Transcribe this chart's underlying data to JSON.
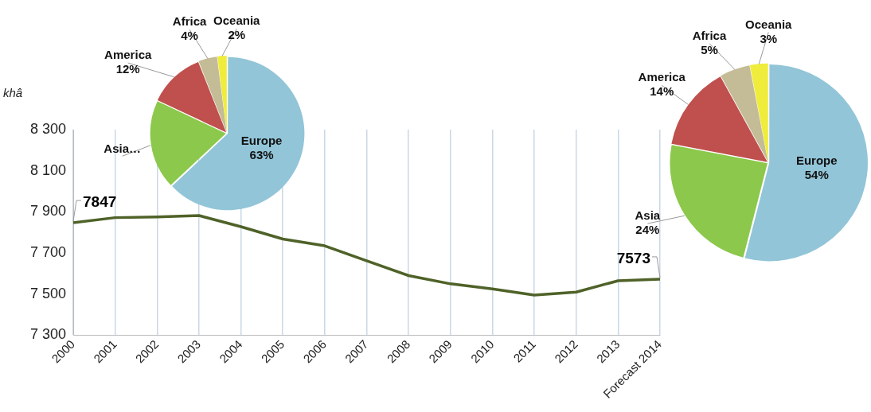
{
  "chart_data": [
    {
      "type": "line",
      "ylabel": "khâ",
      "categories": [
        "2000",
        "2001",
        "2002",
        "2003",
        "2004",
        "2005",
        "2006",
        "2007",
        "2008",
        "2009",
        "2010",
        "2011",
        "2012",
        "2013",
        "Forecast 2014"
      ],
      "series": [
        {
          "color": "#4f6228",
          "values": [
            7847,
            7872,
            7875,
            7882,
            7828,
            7768,
            7735,
            7662,
            7590,
            7550,
            7525,
            7495,
            7510,
            7565,
            7573
          ]
        }
      ],
      "value_labels": [
        "7847",
        null,
        null,
        null,
        null,
        null,
        null,
        null,
        null,
        null,
        null,
        null,
        null,
        null,
        "7573"
      ],
      "ylim": [
        7300,
        8300
      ],
      "yticks": [
        {
          "value": 7300,
          "label": "7 300"
        },
        {
          "value": 7500,
          "label": "7 500"
        },
        {
          "value": 7700,
          "label": "7 700"
        },
        {
          "value": 7900,
          "label": "7 900"
        },
        {
          "value": 8100,
          "label": "8 100"
        },
        {
          "value": 8300,
          "label": "8 300"
        }
      ],
      "grid": "x",
      "legend": false,
      "marker": "none"
    },
    {
      "type": "pie",
      "categories": [
        "Europe",
        "Asia…",
        "America",
        "Africa",
        "Oceania"
      ],
      "values": [
        63,
        19,
        12,
        4,
        2
      ],
      "colors": [
        "#92c5d8",
        "#8cc84b",
        "#c0504d",
        "#c4bc96",
        "#f0ec3c"
      ],
      "value_labels": [
        "63%",
        null,
        "12%",
        "4%",
        "2%"
      ],
      "legend": false
    },
    {
      "type": "pie",
      "categories": [
        "Europe",
        "Asia",
        "America",
        "Africa",
        "Oceania"
      ],
      "values": [
        54,
        24,
        14,
        5,
        3
      ],
      "colors": [
        "#92c5d8",
        "#8cc84b",
        "#c0504d",
        "#c4bc96",
        "#f0ec3c"
      ],
      "value_labels": [
        "54%",
        "24%",
        "14%",
        "5%",
        "3%"
      ],
      "legend": false
    }
  ]
}
